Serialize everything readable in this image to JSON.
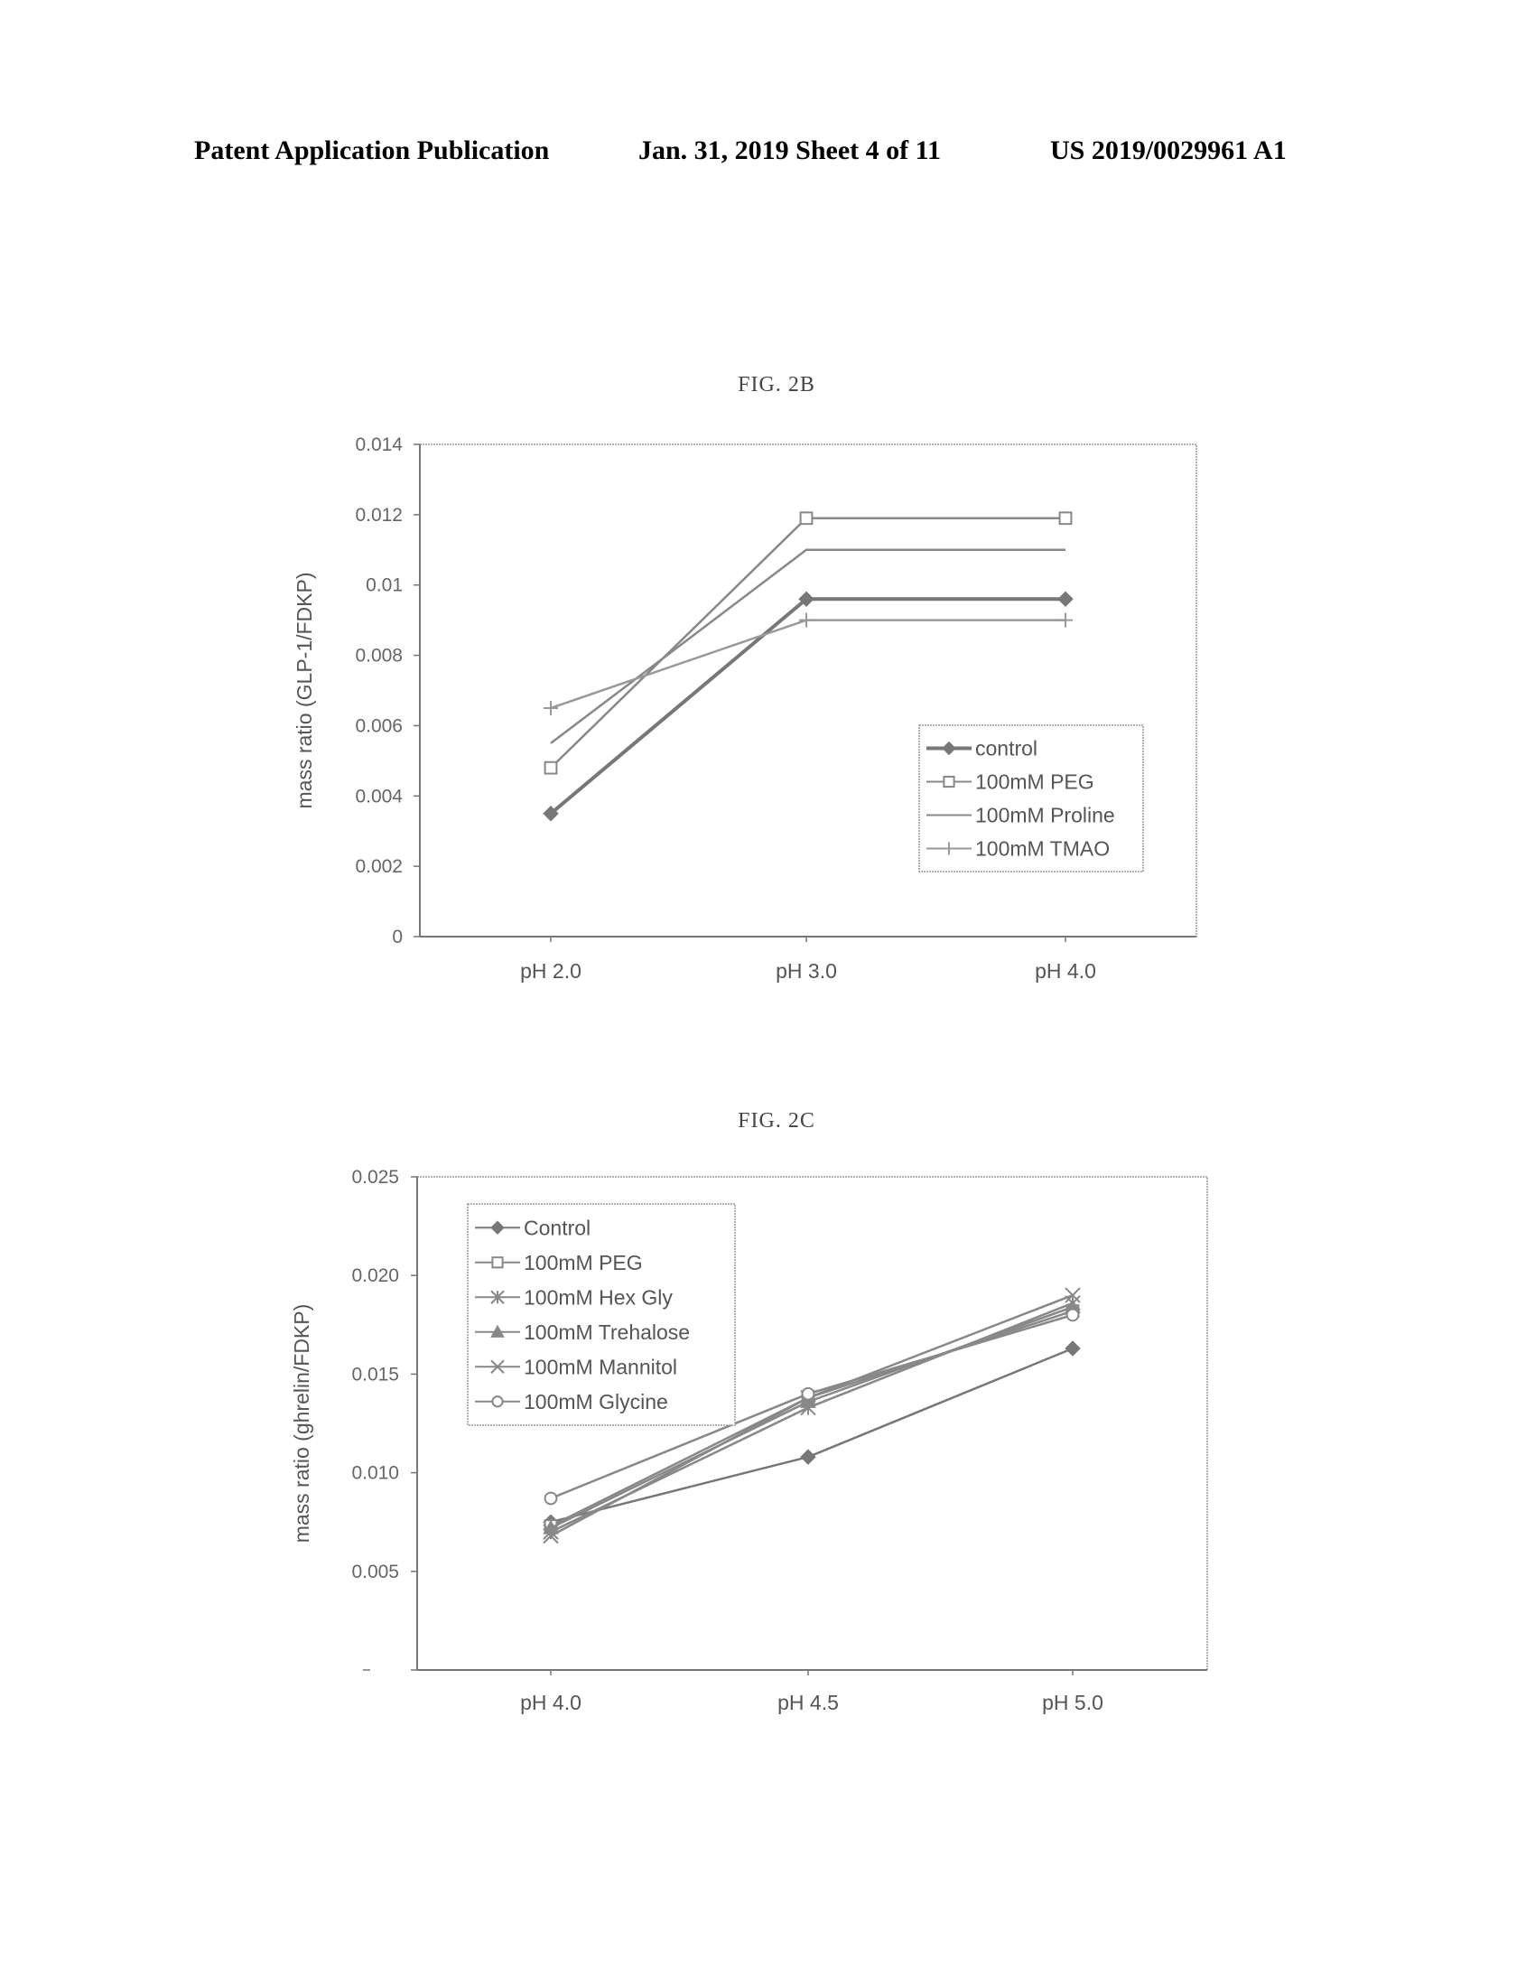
{
  "header": {
    "left": "Patent Application Publication",
    "middle": "Jan. 31, 2019  Sheet 4 of 11",
    "right": "US 2019/0029961 A1"
  },
  "chart_data": [
    {
      "type": "line",
      "title": "FIG. 2B",
      "xlabel": "",
      "ylabel": "mass ratio (GLP-1/FDKP)",
      "categories": [
        "pH 2.0",
        "pH 3.0",
        "pH 4.0"
      ],
      "ylim": [
        0,
        0.014
      ],
      "yticks": [
        "0",
        "0.002",
        "0.004",
        "0.006",
        "0.008",
        "0.01",
        "0.012",
        "0.014"
      ],
      "grid": false,
      "legend_position": "bottom-right",
      "series": [
        {
          "name": "control",
          "values": [
            0.0035,
            0.0096,
            0.0096
          ],
          "marker": "diamond",
          "color": "#777777",
          "bold": true
        },
        {
          "name": "100mM PEG",
          "values": [
            0.0048,
            0.0119,
            0.0119
          ],
          "marker": "square",
          "color": "#888888"
        },
        {
          "name": "100mM Proline",
          "values": [
            0.0055,
            0.011,
            0.011
          ],
          "marker": "none",
          "color": "#888888"
        },
        {
          "name": "100mM TMAO",
          "values": [
            0.0065,
            0.009,
            0.009
          ],
          "marker": "plus",
          "color": "#999999"
        }
      ]
    },
    {
      "type": "line",
      "title": "FIG. 2C",
      "xlabel": "",
      "ylabel": "mass ratio (ghrelin/FDKP)",
      "categories": [
        "pH 4.0",
        "pH 4.5",
        "pH 5.0"
      ],
      "ylim": [
        0,
        0.025
      ],
      "yticks": [
        "",
        "0.005",
        "0.010",
        "0.015",
        "0.020",
        "0.025"
      ],
      "grid": false,
      "legend_position": "top-left",
      "series": [
        {
          "name": "Control",
          "values": [
            0.0075,
            0.0108,
            0.0163
          ],
          "marker": "diamond",
          "color": "#777777"
        },
        {
          "name": "100mM PEG",
          "values": [
            0.0073,
            0.0138,
            0.0182
          ],
          "marker": "square",
          "color": "#888888"
        },
        {
          "name": "100mM Hex Gly",
          "values": [
            0.007,
            0.0133,
            0.0186
          ],
          "marker": "star",
          "color": "#888888"
        },
        {
          "name": "100mM Trehalose",
          "values": [
            0.0072,
            0.0136,
            0.0184
          ],
          "marker": "triangle",
          "color": "#888888"
        },
        {
          "name": "100mM Mannitol",
          "values": [
            0.0068,
            0.0138,
            0.019
          ],
          "marker": "x",
          "color": "#888888"
        },
        {
          "name": "100mM Glycine",
          "values": [
            0.0087,
            0.014,
            0.018
          ],
          "marker": "circle",
          "color": "#888888"
        }
      ]
    }
  ]
}
